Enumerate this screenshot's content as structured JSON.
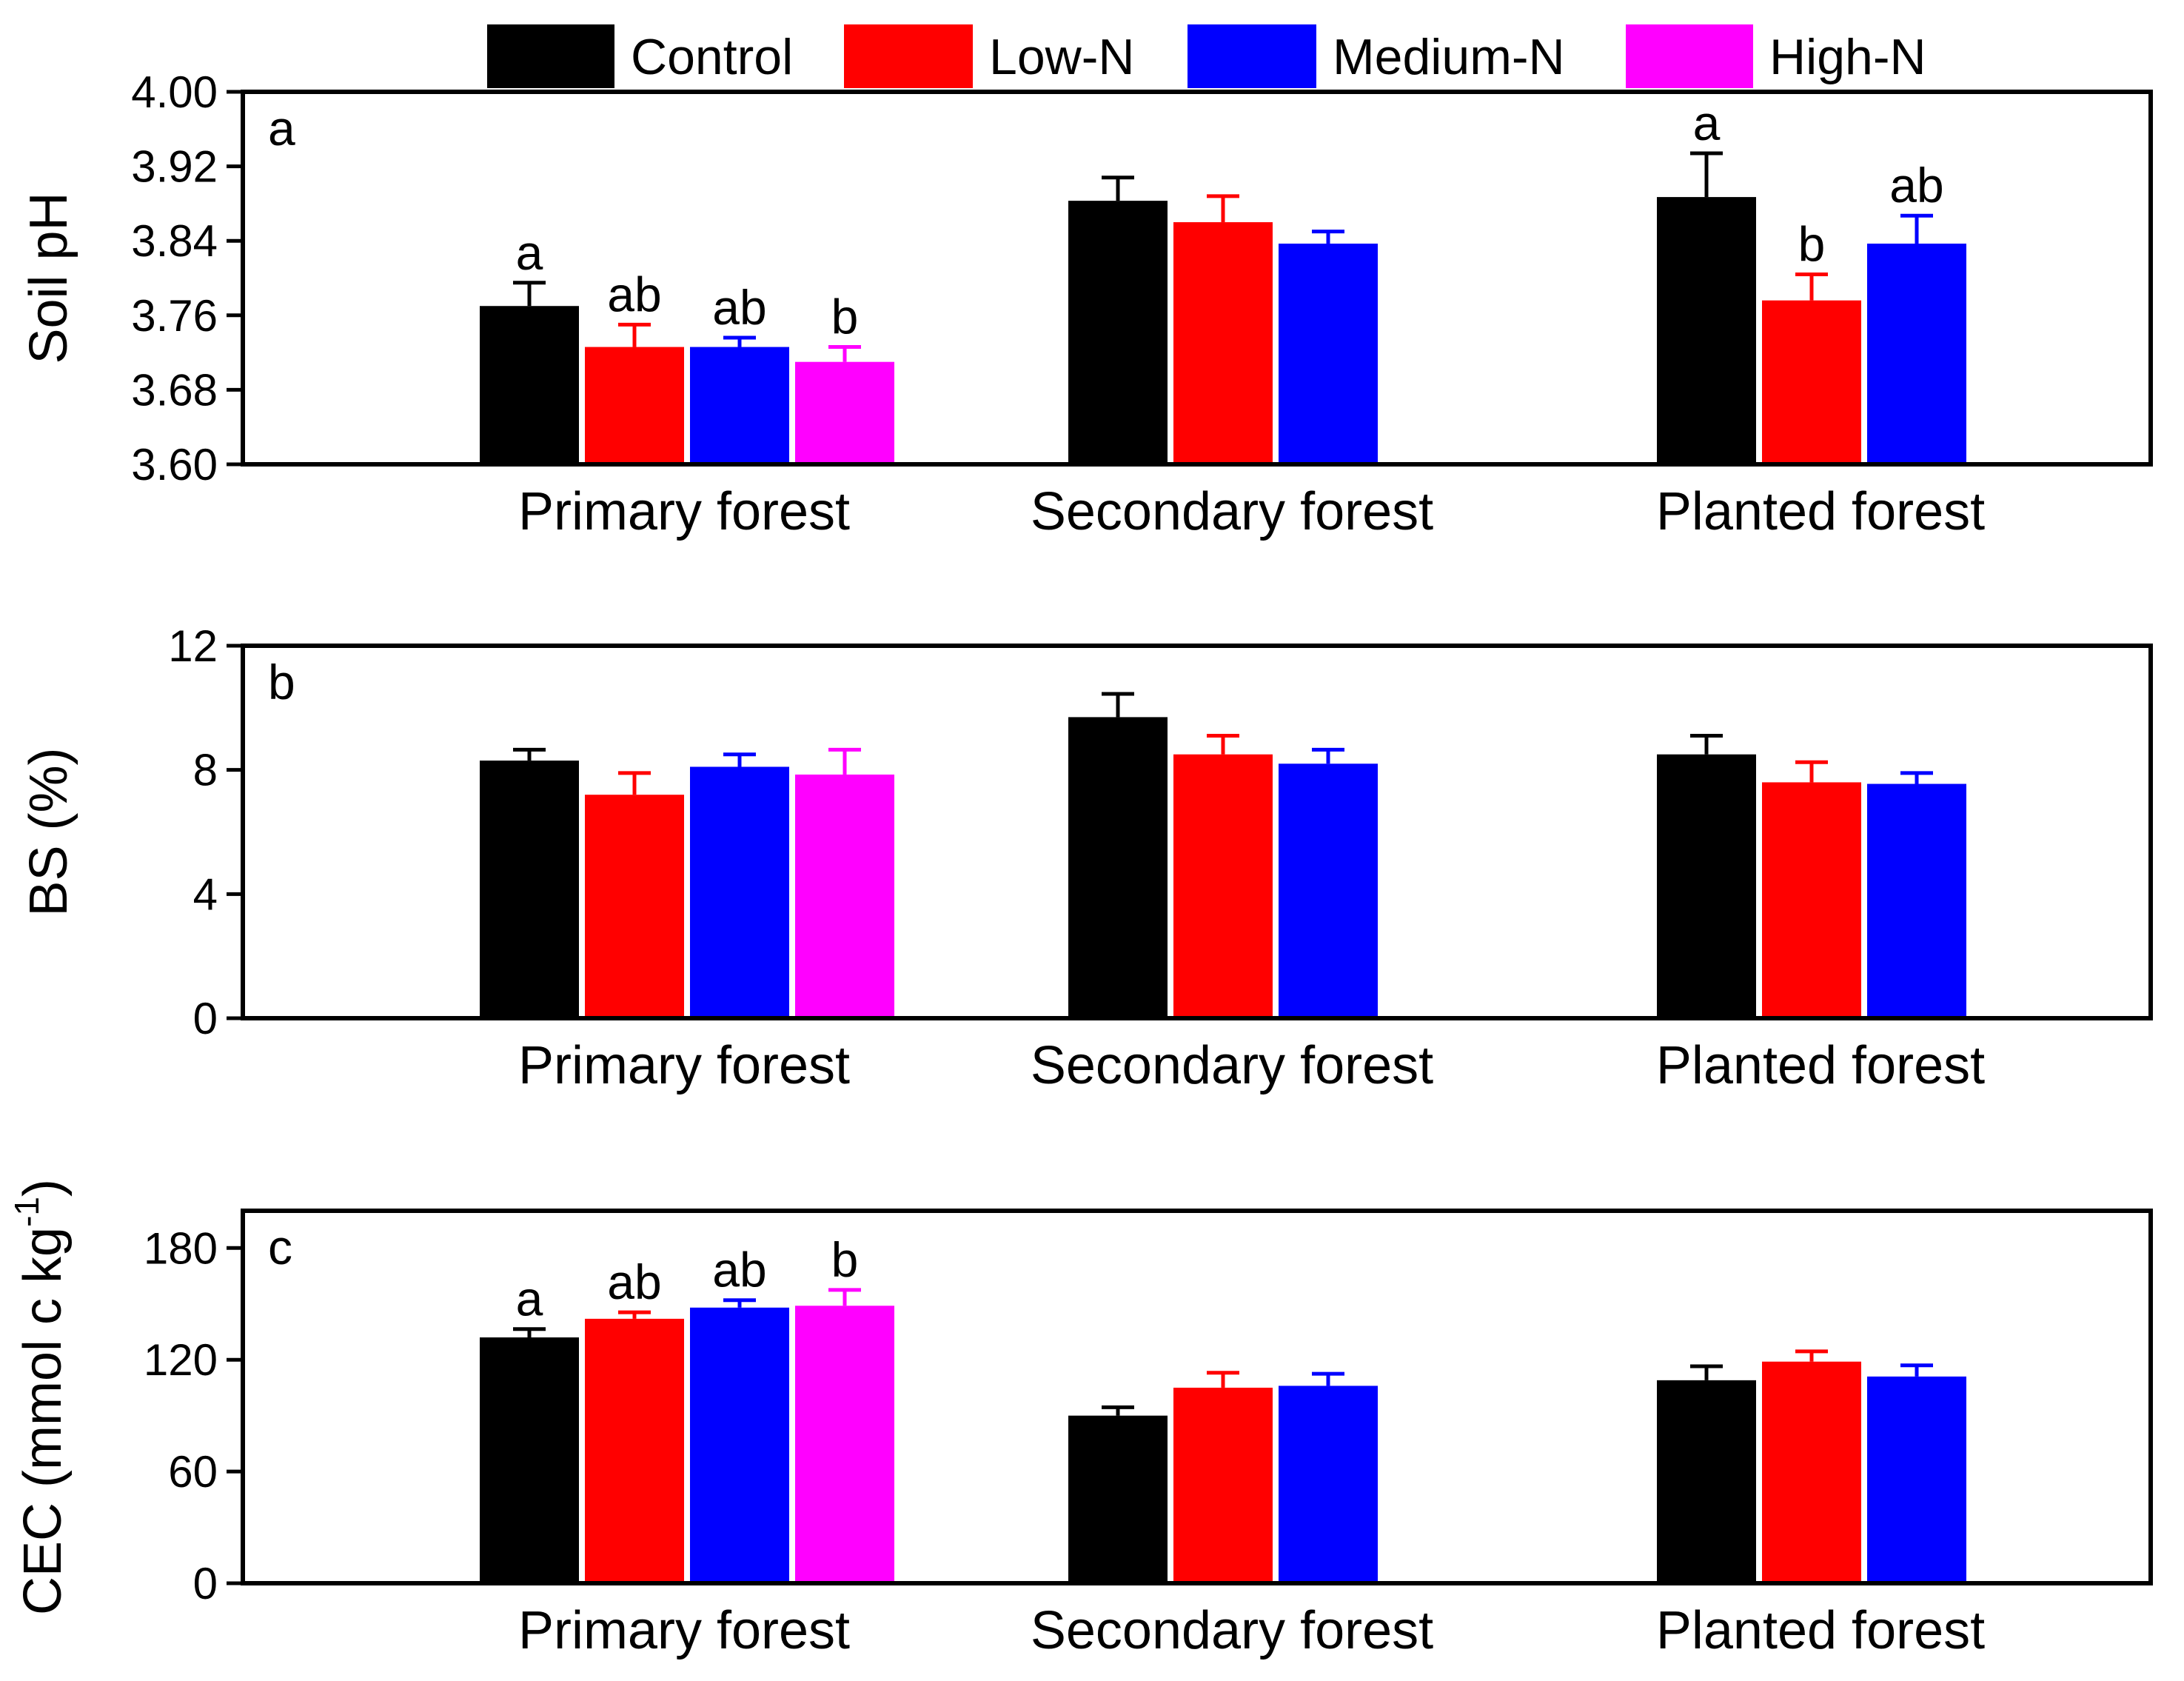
{
  "legend": {
    "position": "top-center",
    "entries": [
      {
        "name": "Control",
        "color": "#000000"
      },
      {
        "name": "Low-N",
        "color": "#ff0000"
      },
      {
        "name": "Medium-N",
        "color": "#0000ff"
      },
      {
        "name": "High-N",
        "color": "#ff00ff"
      }
    ]
  },
  "chart_data": [
    {
      "type": "bar",
      "panel": "a",
      "ylabel": "Soil pH",
      "ylim": [
        3.6,
        4.0
      ],
      "yticks": [
        "3.60",
        "3.68",
        "3.76",
        "3.84",
        "3.92",
        "4.00"
      ],
      "categories": [
        "Primary forest",
        "Secondary forest",
        "Planted forest"
      ],
      "grid": false,
      "series": [
        {
          "name": "Control",
          "values": [
            3.77,
            3.883,
            3.887
          ],
          "errors": [
            0.025,
            0.025,
            0.047
          ],
          "sig": [
            "a",
            "",
            "a"
          ]
        },
        {
          "name": "Low-N",
          "values": [
            3.726,
            3.86,
            3.776
          ],
          "errors": [
            0.024,
            0.028,
            0.028
          ],
          "sig": [
            "ab",
            "",
            "b"
          ]
        },
        {
          "name": "Medium-N",
          "values": [
            3.726,
            3.837,
            3.837
          ],
          "errors": [
            0.01,
            0.013,
            0.03
          ],
          "sig": [
            "ab",
            "",
            "ab"
          ]
        },
        {
          "name": "High-N",
          "values": [
            3.71,
            null,
            null
          ],
          "errors": [
            0.016,
            null,
            null
          ],
          "sig": [
            "b",
            "",
            ""
          ]
        }
      ]
    },
    {
      "type": "bar",
      "panel": "b",
      "ylabel": "BS (%)",
      "ylim": [
        0,
        12
      ],
      "yticks": [
        "0",
        "4",
        "8",
        "12"
      ],
      "categories": [
        "Primary forest",
        "Secondary forest",
        "Planted forest"
      ],
      "grid": false,
      "series": [
        {
          "name": "Control",
          "values": [
            8.3,
            9.7,
            8.5
          ],
          "errors": [
            0.35,
            0.75,
            0.6
          ]
        },
        {
          "name": "Low-N",
          "values": [
            7.2,
            8.5,
            7.6
          ],
          "errors": [
            0.7,
            0.6,
            0.65
          ]
        },
        {
          "name": "Medium-N",
          "values": [
            8.1,
            8.2,
            7.55
          ],
          "errors": [
            0.4,
            0.45,
            0.35
          ]
        },
        {
          "name": "High-N",
          "values": [
            7.85,
            null,
            null
          ],
          "errors": [
            0.8,
            null,
            null
          ]
        }
      ]
    },
    {
      "type": "bar",
      "panel": "c",
      "ylabel": "CEC (mmol c kg",
      "ylabel_sup": "-1",
      "ylabel_end": ")",
      "ylim": [
        0,
        200
      ],
      "yticks": [
        "0",
        "60",
        "120",
        "180"
      ],
      "categories": [
        "Primary forest",
        "Secondary forest",
        "Planted forest"
      ],
      "grid": false,
      "series": [
        {
          "name": "Control",
          "values": [
            132,
            90,
            109
          ],
          "errors": [
            4.5,
            4.5,
            7.5
          ],
          "sig": [
            "a",
            "",
            ""
          ]
        },
        {
          "name": "Low-N",
          "values": [
            142,
            105,
            119
          ],
          "errors": [
            3.5,
            8,
            5.5
          ],
          "sig": [
            "ab",
            "",
            ""
          ]
        },
        {
          "name": "Medium-N",
          "values": [
            148,
            106,
            111
          ],
          "errors": [
            4,
            6.5,
            6
          ],
          "sig": [
            "ab",
            "",
            ""
          ]
        },
        {
          "name": "High-N",
          "values": [
            149,
            null,
            null
          ],
          "errors": [
            8.5,
            null,
            null
          ],
          "sig": [
            "b",
            "",
            ""
          ]
        }
      ]
    }
  ]
}
